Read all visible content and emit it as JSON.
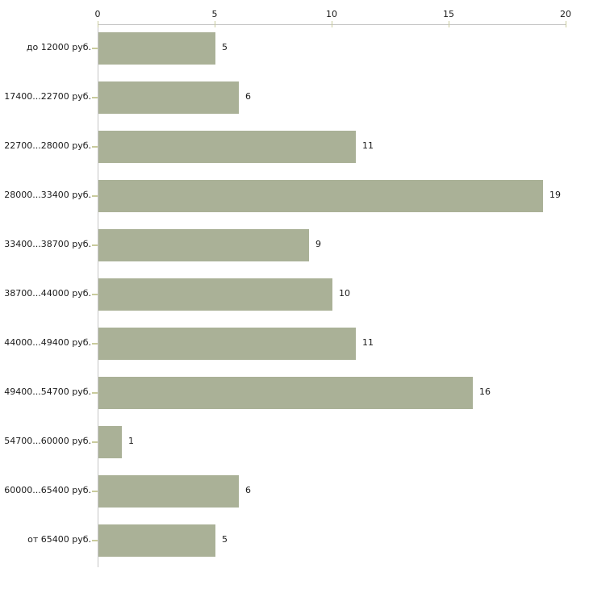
{
  "chart_data": {
    "type": "bar",
    "orientation": "horizontal",
    "title": "",
    "xlabel": "",
    "ylabel": "",
    "categories": [
      "до 12000 руб.",
      "17400...22700 руб.",
      "22700...28000 руб.",
      "28000...33400 руб.",
      "33400...38700 руб.",
      "38700...44000 руб.",
      "44000...49400 руб.",
      "49400...54700 руб.",
      "54700...60000 руб.",
      "60000...65400 руб.",
      "от 65400 руб."
    ],
    "values": [
      5,
      6,
      11,
      19,
      9,
      10,
      11,
      16,
      1,
      6,
      5
    ],
    "x_ticks": [
      0,
      5,
      10,
      15,
      20
    ],
    "xlim": [
      0,
      20
    ],
    "axis_position": "top",
    "grid": false,
    "legend": false,
    "value_labels": "right-of-bar",
    "bar_color": "#aab197",
    "tick_color": "#c9cb9c",
    "axis_line_color": "#c6c6c6",
    "text_color": "#1a1a1a",
    "background_color": "#ffffff"
  }
}
